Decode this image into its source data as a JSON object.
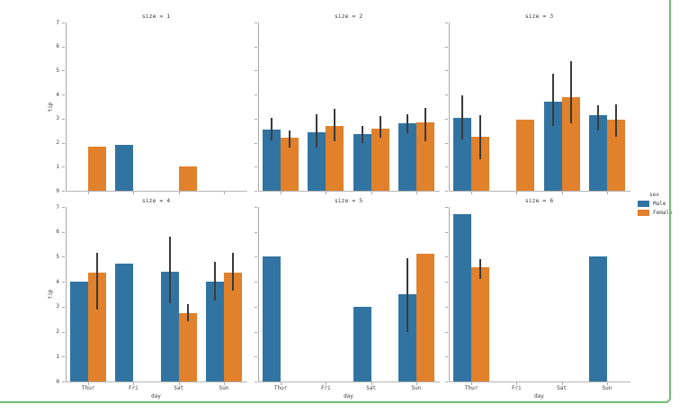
{
  "figure": {
    "background": "#ffffff",
    "border_color": "#6fbf73"
  },
  "legend": {
    "title": "sex",
    "items": [
      {
        "label": "Male",
        "color": "#3274a1"
      },
      {
        "label": "Female",
        "color": "#e1812c"
      }
    ]
  },
  "chart_data": {
    "type": "bar",
    "xlabel": "day",
    "ylabel": "tip",
    "categories": [
      "Thur",
      "Fri",
      "Sat",
      "Sun"
    ],
    "y_ticks": [
      "0",
      "1",
      "2",
      "3",
      "4",
      "5",
      "6",
      "7"
    ],
    "ylim": [
      0,
      7
    ],
    "grid": false,
    "legend_position": "right",
    "error_bar_color": "#3a3a3a",
    "series_colors": {
      "Male": "#3274a1",
      "Female": "#e1812c"
    },
    "facets": [
      {
        "title": "size = 1",
        "series": [
          {
            "name": "Male",
            "values": [
              null,
              1.92,
              null,
              null
            ],
            "errors": [
              null,
              null,
              null,
              null
            ]
          },
          {
            "name": "Female",
            "values": [
              1.83,
              null,
              1.0,
              null
            ],
            "errors": [
              null,
              null,
              null,
              null
            ]
          }
        ]
      },
      {
        "title": "size = 2",
        "series": [
          {
            "name": "Male",
            "values": [
              2.55,
              2.45,
              2.35,
              2.8
            ],
            "errors": [
              [
                2.1,
                3.05
              ],
              [
                1.8,
                3.2
              ],
              [
                2.0,
                2.7
              ],
              [
                2.4,
                3.2
              ]
            ]
          },
          {
            "name": "Female",
            "values": [
              2.2,
              2.7,
              2.6,
              2.85
            ],
            "errors": [
              [
                1.8,
                2.5
              ],
              [
                2.05,
                3.4
              ],
              [
                2.2,
                3.1
              ],
              [
                2.05,
                3.45
              ]
            ]
          }
        ]
      },
      {
        "title": "size = 3",
        "series": [
          {
            "name": "Male",
            "values": [
              3.05,
              null,
              3.7,
              3.15
            ],
            "errors": [
              [
                2.15,
                3.95
              ],
              null,
              [
                2.7,
                4.85
              ],
              [
                2.5,
                3.55
              ]
            ]
          },
          {
            "name": "Female",
            "values": [
              2.25,
              2.95,
              3.9,
              2.95
            ],
            "errors": [
              [
                1.3,
                3.15
              ],
              null,
              [
                2.8,
                5.4
              ],
              [
                2.25,
                3.6
              ]
            ]
          }
        ]
      },
      {
        "title": "size = 4",
        "series": [
          {
            "name": "Male",
            "values": [
              4.0,
              4.73,
              4.4,
              4.0
            ],
            "errors": [
              null,
              null,
              [
                3.15,
                5.8
              ],
              [
                3.25,
                4.8
              ]
            ]
          },
          {
            "name": "Female",
            "values": [
              4.37,
              null,
              2.76,
              4.37
            ],
            "errors": [
              [
                2.9,
                5.15
              ],
              null,
              [
                2.43,
                3.1
              ],
              [
                3.65,
                5.15
              ]
            ]
          }
        ]
      },
      {
        "title": "size = 5",
        "series": [
          {
            "name": "Male",
            "values": [
              5.0,
              null,
              3.0,
              3.5
            ],
            "errors": [
              null,
              null,
              null,
              [
                2.0,
                4.95
              ]
            ]
          },
          {
            "name": "Female",
            "values": [
              null,
              null,
              null,
              5.14
            ],
            "errors": [
              null,
              null,
              null,
              null
            ]
          }
        ]
      },
      {
        "title": "size = 6",
        "series": [
          {
            "name": "Male",
            "values": [
              6.7,
              null,
              null,
              5.0
            ],
            "errors": [
              null,
              null,
              null,
              null
            ]
          },
          {
            "name": "Female",
            "values": [
              4.6,
              null,
              null,
              null
            ],
            "errors": [
              [
                4.1,
                4.9
              ],
              null,
              null,
              null
            ]
          }
        ]
      }
    ]
  }
}
